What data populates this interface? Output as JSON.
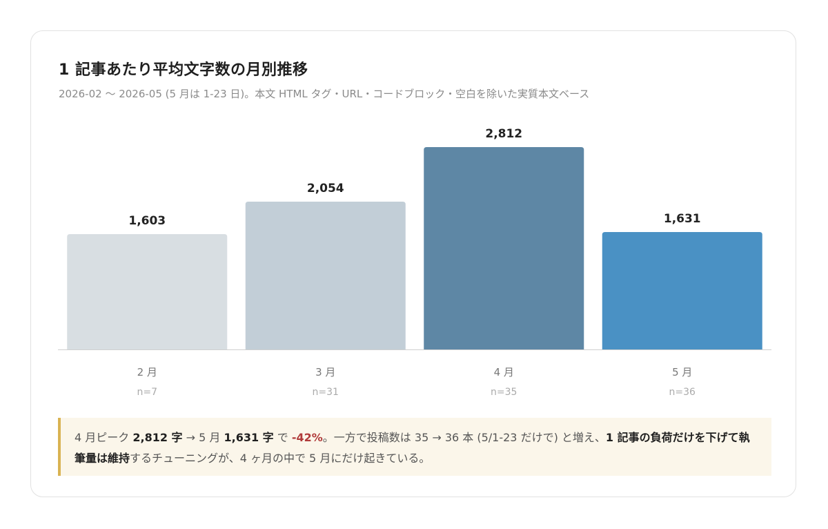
{
  "card": {
    "title": "1 記事あたり平均文字数の月別推移",
    "subtitle": "2026-02 〜 2026-05 (5 月は 1-23 日)。本文 HTML タグ・URL・コードブロック・空白を除いた実質本文ベース"
  },
  "chart_data": {
    "type": "bar",
    "categories": [
      "2 月",
      "3 月",
      "4 月",
      "5 月"
    ],
    "values": [
      1603,
      2054,
      2812,
      1631
    ],
    "value_labels": [
      "1,603",
      "2,054",
      "2,812",
      "1,631"
    ],
    "sample_sizes": [
      "n=7",
      "n=31",
      "n=35",
      "n=36"
    ],
    "colors": [
      "#d8dee2",
      "#c2ced7",
      "#5e87a5",
      "#4a91c4"
    ],
    "ylim": [
      0,
      2812
    ],
    "grid": false,
    "legend": "none"
  },
  "note": {
    "p1": "4 月ピーク ",
    "b1": "2,812 字",
    "p2": " → 5 月 ",
    "b2": "1,631 字",
    "p3": " で ",
    "neg": "-42%",
    "p4": "。一方で投稿数は 35 → 36 本 (5/1-23 だけで) と増え、",
    "b3": "1 記事の負荷だけを下げて執筆量は維持",
    "p5": "するチューニングが、4 ヶ月の中で 5 月にだけ起きている。",
    "accent_color": "#d9b352"
  }
}
